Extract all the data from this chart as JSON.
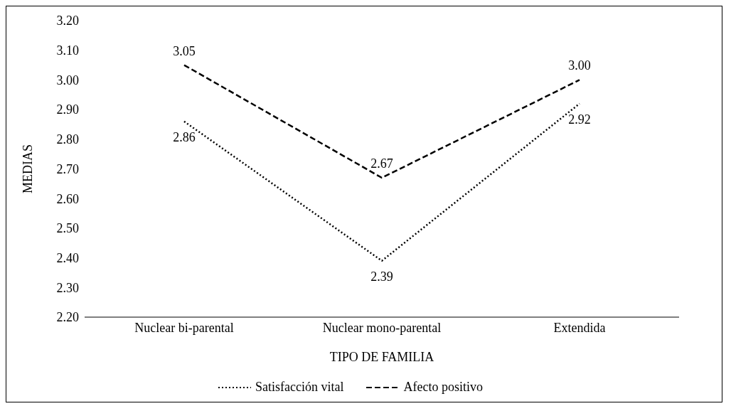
{
  "chart_data": {
    "type": "line",
    "xlabel": "TIPO DE FAMILIA",
    "ylabel": "MEDIAS",
    "categories": [
      "Nuclear bi-parental",
      "Nuclear mono-parental",
      "Extendida"
    ],
    "series": [
      {
        "name": "Satisfacción vital",
        "color": "#000000",
        "line_style": "dotted",
        "values": [
          2.86,
          2.39,
          2.92
        ],
        "value_labels": [
          "2.86",
          "2.39",
          "2.92"
        ]
      },
      {
        "name": "Afecto positivo",
        "color": "#000000",
        "line_style": "dashed",
        "values": [
          3.05,
          2.67,
          3.0
        ],
        "value_labels": [
          "3.05",
          "2.67",
          "3.00"
        ]
      }
    ],
    "ylim": [
      2.2,
      3.2
    ],
    "yticks": [
      {
        "value": 2.2,
        "label": "2.20"
      },
      {
        "value": 2.3,
        "label": "2.30"
      },
      {
        "value": 2.4,
        "label": "2.40"
      },
      {
        "value": 2.5,
        "label": "2.50"
      },
      {
        "value": 2.6,
        "label": "2.60"
      },
      {
        "value": 2.7,
        "label": "2.70"
      },
      {
        "value": 2.8,
        "label": "2.80"
      },
      {
        "value": 2.9,
        "label": "2.90"
      },
      {
        "value": 3.0,
        "label": "3.00"
      },
      {
        "value": 3.1,
        "label": "3.10"
      },
      {
        "value": 3.2,
        "label": "3.20"
      }
    ],
    "grid": false,
    "legend": "bottom",
    "marker": "none"
  }
}
